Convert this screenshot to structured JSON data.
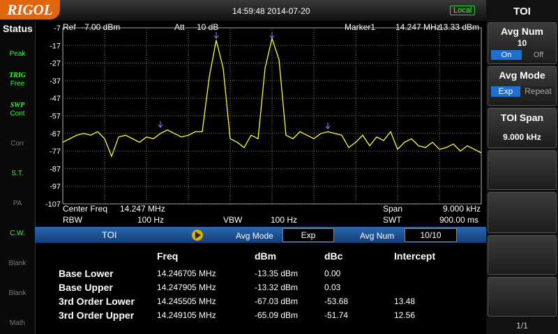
{
  "header": {
    "brand": "RIGOL",
    "datetime": "14:59:48 2014-07-20",
    "remote": "Local"
  },
  "status": {
    "title": "Status",
    "items": [
      [
        "Peak"
      ],
      [
        "TRIG",
        "Free"
      ],
      [
        "SWP",
        "Cont"
      ],
      [
        "Corr"
      ],
      [
        "S.T."
      ],
      [
        "PA"
      ],
      [
        "C.W."
      ],
      [
        "Blank"
      ],
      [
        "Blank"
      ],
      [
        "Math"
      ]
    ]
  },
  "info_top": {
    "ref_label": "Ref",
    "ref_value": "-7.00 dBm",
    "att_label": "Att",
    "att_value": "10 dB",
    "marker_label": "Marker1",
    "marker_freq": "14.247 MHz",
    "marker_level": "-13.33 dBm"
  },
  "info_bottom": {
    "center_label": "Center Freq",
    "center_value": "14.247 MHz",
    "span_label": "Span",
    "span_value": "9.000 kHz",
    "rbw_label": "RBW",
    "rbw_value": "100 Hz",
    "vbw_label": "VBW",
    "vbw_value": "100 Hz",
    "swt_label": "SWT",
    "swt_value": "900.00 ms"
  },
  "chart_data": {
    "type": "line",
    "color": "#ffff33",
    "grid": true,
    "ylim": [
      -107,
      -7
    ],
    "yticks": [
      -107,
      -97,
      -87,
      -77,
      -67,
      -57,
      -47,
      -37,
      -27,
      -17,
      -7
    ],
    "values": [
      -72,
      -70,
      -68,
      -67,
      -68,
      -66,
      -70,
      -80,
      -69,
      -68,
      -70,
      -72,
      -69,
      -70,
      -67,
      -65,
      -67,
      -69,
      -68,
      -66,
      -66,
      -35,
      -14,
      -30,
      -70,
      -72,
      -75,
      -68,
      -70,
      -30,
      -13,
      -25,
      -68,
      -70,
      -66,
      -68,
      -70,
      -67,
      -66,
      -67,
      -68,
      -75,
      -72,
      -68,
      -74,
      -69,
      -71,
      -66,
      -76,
      -72,
      -70,
      -74,
      -75,
      -72,
      -76,
      -75,
      -73,
      -77,
      -74,
      -76,
      -78
    ]
  },
  "toi_bar": {
    "title": "TOI",
    "avg_mode_label": "Avg Mode",
    "avg_mode": "Exp",
    "avg_num_label": "Avg Num",
    "avg_num": "10/10"
  },
  "table": {
    "headers": [
      "Freq",
      "dBm",
      "dBc",
      "Intercept"
    ],
    "rows": [
      [
        "Base Lower",
        "14.246705 MHz",
        "-13.35 dBm",
        "0.00",
        null
      ],
      [
        "Base Upper",
        "14.247905 MHz",
        "-13.32 dBm",
        "0.03",
        null
      ],
      [
        "3rd Order Lower",
        "14.245505 MHz",
        "-67.03 dBm",
        "-53.68",
        "13.48"
      ],
      [
        "3rd Order Upper",
        "14.249105 MHz",
        "-65.09 dBm",
        "-51.74",
        "12.56"
      ]
    ]
  },
  "menu": {
    "title": "TOI",
    "avg_num_label": "Avg Num",
    "avg_num_value": "10",
    "on": "On",
    "off": "Off",
    "avg_mode_label": "Avg Mode",
    "exp": "Exp",
    "repeat": "Repeat",
    "toi_span_label": "TOI Span",
    "toi_span_value": "9.000 kHz",
    "page": "1/1"
  }
}
